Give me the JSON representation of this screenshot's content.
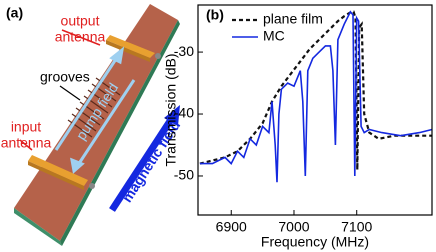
{
  "panel_a": {
    "label": "(a)",
    "output_antenna": [
      "output",
      "antenna"
    ],
    "grooves": "grooves",
    "input_antenna": [
      "input",
      "antenna"
    ],
    "pump_field": "pump field",
    "magnetic_field": "magnetic field"
  },
  "chart_data": {
    "type": "line",
    "label": "(b)",
    "x_label": "Frequency (MHz)",
    "y_label": "Transmission (dB)",
    "xlim": [
      6847,
      7220
    ],
    "ylim": [
      -56.3,
      -22.4
    ],
    "xticks": [
      6900,
      7000,
      7100
    ],
    "yticks": [
      -50,
      -40,
      -30
    ],
    "series": [
      {
        "name": "plane film",
        "color": "#111111",
        "dashed": true,
        "x": [
          6850,
          6870,
          6890,
          6910,
          6930,
          6950,
          6965,
          6980,
          6995,
          7010,
          7025,
          7040,
          7055,
          7070,
          7080,
          7090,
          7095,
          7098,
          7101,
          7104,
          7108,
          7112,
          7120,
          7135,
          7160,
          7190,
          7220
        ],
        "values": [
          -48,
          -47.5,
          -47,
          -46,
          -44,
          -41.5,
          -38,
          -35.5,
          -33.5,
          -31.5,
          -29.5,
          -28,
          -26.5,
          -25,
          -24.2,
          -23.6,
          -23.5,
          -24.5,
          -49,
          -26,
          -25.5,
          -40,
          -43,
          -44,
          -43.5,
          -43.5,
          -43.5
        ]
      },
      {
        "name": "MC",
        "color": "#1428e0",
        "dashed": false,
        "x": [
          6850,
          6870,
          6890,
          6900,
          6910,
          6920,
          6930,
          6940,
          6950,
          6960,
          6965,
          6970,
          6973,
          6976,
          6980,
          6990,
          7000,
          7010,
          7014,
          7018,
          7022,
          7030,
          7040,
          7050,
          7058,
          7062,
          7066,
          7070,
          7080,
          7090,
          7094,
          7097,
          7100,
          7103,
          7107,
          7112,
          7120,
          7140,
          7170,
          7200,
          7220
        ],
        "values": [
          -48,
          -48,
          -47,
          -48,
          -46,
          -47,
          -44,
          -45,
          -42,
          -43,
          -38,
          -45,
          -51,
          -40,
          -36,
          -35,
          -35.5,
          -33,
          -38,
          -50,
          -33,
          -31,
          -30,
          -29,
          -29,
          -33,
          -45,
          -28,
          -25.5,
          -23.5,
          -24,
          -50,
          -24.5,
          -25,
          -42,
          -43,
          -42.5,
          -43,
          -43.5,
          -43,
          -42.5
        ]
      }
    ]
  }
}
